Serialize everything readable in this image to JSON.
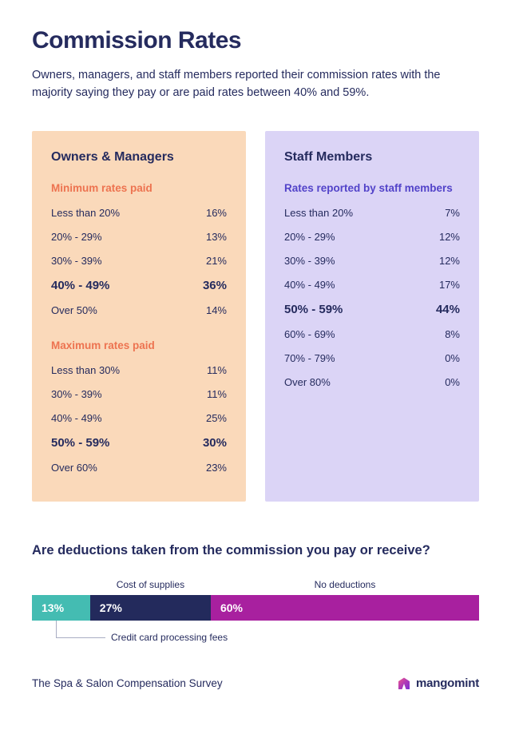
{
  "page": {
    "title": "Commission Rates",
    "subtitle": "Owners, managers, and staff members reported their commission rates with the majority saying they pay or are paid rates between 40% and 59%.",
    "footer": "The Spa & Salon Compensation Survey",
    "brand": "mangomint"
  },
  "colors": {
    "navy": "#252b5e",
    "peach_panel": "#fad9ba",
    "orange_heading": "#ed7350",
    "lavender_panel": "#dbd4f6",
    "purple_heading": "#5243c9",
    "teal": "#44bcb2",
    "bar_navy": "#232a5c",
    "magenta": "#a8209f"
  },
  "panels": {
    "owners": {
      "title": "Owners & Managers",
      "sections": [
        {
          "heading": "Minimum rates paid",
          "rows": [
            {
              "label": "Less than 20%",
              "value": "16%"
            },
            {
              "label": "20% - 29%",
              "value": "13%"
            },
            {
              "label": "30% - 39%",
              "value": "21%"
            },
            {
              "label": "40% - 49%",
              "value": "36%",
              "highlight": true
            },
            {
              "label": "Over 50%",
              "value": "14%"
            }
          ]
        },
        {
          "heading": "Maximum rates paid",
          "rows": [
            {
              "label": "Less than 30%",
              "value": "11%"
            },
            {
              "label": "30% - 39%",
              "value": "11%"
            },
            {
              "label": "40% - 49%",
              "value": "25%"
            },
            {
              "label": "50% - 59%",
              "value": "30%",
              "highlight": true
            },
            {
              "label": "Over 60%",
              "value": "23%"
            }
          ]
        }
      ]
    },
    "staff": {
      "title": "Staff Members",
      "sections": [
        {
          "heading": "Rates reported by staff members",
          "rows": [
            {
              "label": "Less than 20%",
              "value": "7%"
            },
            {
              "label": "20% - 29%",
              "value": "12%"
            },
            {
              "label": "30% - 39%",
              "value": "12%"
            },
            {
              "label": "40% - 49%",
              "value": "17%"
            },
            {
              "label": "50% - 59%",
              "value": "44%",
              "highlight": true
            },
            {
              "label": "60% - 69%",
              "value": "8%"
            },
            {
              "label": "70% - 79%",
              "value": "0%"
            },
            {
              "label": "Over 80%",
              "value": "0%"
            }
          ]
        }
      ]
    }
  },
  "deductions": {
    "heading": "Are deductions taken from the commission you pay or receive?",
    "segments": [
      {
        "label": "Credit card processing fees",
        "value": 13,
        "display": "13%",
        "color": "#44bcb2",
        "label_position": "below"
      },
      {
        "label": "Cost of supplies",
        "value": 27,
        "display": "27%",
        "color": "#232a5c",
        "label_position": "above"
      },
      {
        "label": "No deductions",
        "value": 60,
        "display": "60%",
        "color": "#a8209f",
        "label_position": "above"
      }
    ]
  },
  "chart_data": [
    {
      "type": "table",
      "title": "Owners & Managers — Minimum rates paid",
      "categories": [
        "Less than 20%",
        "20% - 29%",
        "30% - 39%",
        "40% - 49%",
        "Over 50%"
      ],
      "values": [
        16,
        13,
        21,
        36,
        14
      ],
      "highlight_category": "40% - 49%"
    },
    {
      "type": "table",
      "title": "Owners & Managers — Maximum rates paid",
      "categories": [
        "Less than 30%",
        "30% - 39%",
        "40% - 49%",
        "50% - 59%",
        "Over 60%"
      ],
      "values": [
        11,
        11,
        25,
        30,
        23
      ],
      "highlight_category": "50% - 59%"
    },
    {
      "type": "table",
      "title": "Staff Members — Rates reported by staff members",
      "categories": [
        "Less than 20%",
        "20% - 29%",
        "30% - 39%",
        "40% - 49%",
        "50% - 59%",
        "60% - 69%",
        "70% - 79%",
        "Over 80%"
      ],
      "values": [
        7,
        12,
        12,
        17,
        44,
        8,
        0,
        0
      ],
      "highlight_category": "50% - 59%"
    },
    {
      "type": "bar",
      "layout": "stacked-horizontal",
      "title": "Are deductions taken from the commission you pay or receive?",
      "categories": [
        "Credit card processing fees",
        "Cost of supplies",
        "No deductions"
      ],
      "values": [
        13,
        27,
        60
      ],
      "colors": [
        "#44bcb2",
        "#232a5c",
        "#a8209f"
      ],
      "xlim": [
        0,
        100
      ]
    }
  ]
}
